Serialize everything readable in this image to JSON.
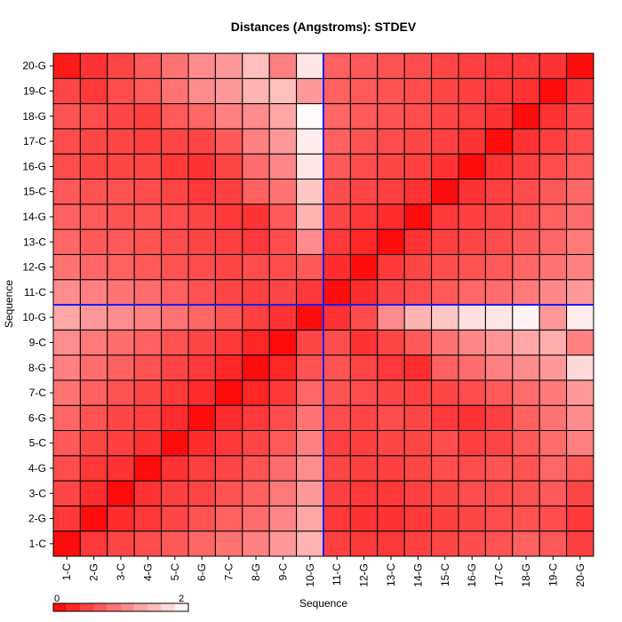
{
  "chart_data": {
    "type": "heatmap",
    "title": "Distances (Angstroms):  STDEV",
    "xlabel": "Sequence",
    "ylabel": "Sequence",
    "labels": [
      "1-C",
      "2-G",
      "3-C",
      "4-G",
      "5-C",
      "6-G",
      "7-C",
      "8-G",
      "9-C",
      "10-G",
      "11-C",
      "12-G",
      "13-C",
      "14-G",
      "15-C",
      "16-G",
      "17-C",
      "18-G",
      "19-C",
      "20-G"
    ],
    "highlight_index": 10,
    "highlight_color": "#1a1aff",
    "colorscale": {
      "min": 0,
      "max": 2,
      "low_color": "#ff0000",
      "high_color": "#ffffff"
    },
    "legend": {
      "min_label": "0",
      "max_label": "2"
    },
    "grid": true,
    "values": [
      [
        0.1,
        0.45,
        0.55,
        0.6,
        0.7,
        0.8,
        0.9,
        1.0,
        1.2,
        1.4,
        0.5,
        0.45,
        0.45,
        0.5,
        0.55,
        0.6,
        0.65,
        0.75,
        0.7,
        0.5
      ],
      [
        0.45,
        0.1,
        0.35,
        0.45,
        0.55,
        0.65,
        0.75,
        0.85,
        1.05,
        1.3,
        0.45,
        0.4,
        0.4,
        0.45,
        0.5,
        0.55,
        0.6,
        0.65,
        0.6,
        0.45
      ],
      [
        0.55,
        0.35,
        0.1,
        0.4,
        0.5,
        0.55,
        0.65,
        0.75,
        0.95,
        1.2,
        0.5,
        0.45,
        0.45,
        0.5,
        0.55,
        0.6,
        0.6,
        0.65,
        0.7,
        0.55
      ],
      [
        0.6,
        0.45,
        0.4,
        0.1,
        0.4,
        0.5,
        0.55,
        0.65,
        0.85,
        1.1,
        0.55,
        0.5,
        0.5,
        0.55,
        0.6,
        0.6,
        0.65,
        0.65,
        0.8,
        0.7
      ],
      [
        0.7,
        0.55,
        0.5,
        0.4,
        0.1,
        0.35,
        0.45,
        0.55,
        0.7,
        1.0,
        0.5,
        0.5,
        0.55,
        0.55,
        0.6,
        0.5,
        0.55,
        0.7,
        0.85,
        1.0
      ],
      [
        0.8,
        0.65,
        0.55,
        0.5,
        0.35,
        0.1,
        0.35,
        0.45,
        0.6,
        0.9,
        0.6,
        0.55,
        0.6,
        0.55,
        0.45,
        0.4,
        0.5,
        0.75,
        0.9,
        1.1
      ],
      [
        0.9,
        0.75,
        0.65,
        0.55,
        0.45,
        0.35,
        0.1,
        0.3,
        0.45,
        0.8,
        0.65,
        0.6,
        0.55,
        0.5,
        0.55,
        0.6,
        0.7,
        0.85,
        0.95,
        1.2
      ],
      [
        1.0,
        0.85,
        0.75,
        0.65,
        0.55,
        0.45,
        0.3,
        0.1,
        0.3,
        0.65,
        0.65,
        0.55,
        0.45,
        0.35,
        0.75,
        0.85,
        1.0,
        1.1,
        1.2,
        1.7
      ],
      [
        1.1,
        0.95,
        0.85,
        0.75,
        0.65,
        0.55,
        0.45,
        0.3,
        0.1,
        0.55,
        0.6,
        0.4,
        0.55,
        0.7,
        0.9,
        1.05,
        1.15,
        1.3,
        1.35,
        1.0
      ],
      [
        1.3,
        1.2,
        1.1,
        1.0,
        0.9,
        0.8,
        0.65,
        0.5,
        0.4,
        0.1,
        0.4,
        0.6,
        1.1,
        1.4,
        1.55,
        1.75,
        1.8,
        1.9,
        1.2,
        1.85
      ],
      [
        1.1,
        1.0,
        0.9,
        0.85,
        0.75,
        0.65,
        0.55,
        0.5,
        0.55,
        0.45,
        0.1,
        0.35,
        0.55,
        0.6,
        0.7,
        0.8,
        0.85,
        0.95,
        1.05,
        1.2
      ],
      [
        0.9,
        0.8,
        0.75,
        0.7,
        0.65,
        0.6,
        0.55,
        0.6,
        0.6,
        0.7,
        0.35,
        0.1,
        0.45,
        0.55,
        0.6,
        0.65,
        0.7,
        0.8,
        0.9,
        1.0
      ],
      [
        0.8,
        0.7,
        0.7,
        0.65,
        0.6,
        0.55,
        0.5,
        0.45,
        0.6,
        1.1,
        0.45,
        0.3,
        0.1,
        0.4,
        0.5,
        0.55,
        0.6,
        0.7,
        0.8,
        0.95
      ],
      [
        0.75,
        0.7,
        0.65,
        0.65,
        0.6,
        0.55,
        0.45,
        0.4,
        0.7,
        1.4,
        0.55,
        0.45,
        0.35,
        0.1,
        0.45,
        0.5,
        0.55,
        0.65,
        0.75,
        0.85
      ],
      [
        0.7,
        0.65,
        0.65,
        0.6,
        0.55,
        0.45,
        0.5,
        0.75,
        0.9,
        1.55,
        0.6,
        0.55,
        0.5,
        0.4,
        0.1,
        0.4,
        0.5,
        0.6,
        0.7,
        0.8
      ],
      [
        0.6,
        0.55,
        0.55,
        0.55,
        0.45,
        0.4,
        0.55,
        0.85,
        1.05,
        1.8,
        0.7,
        0.6,
        0.55,
        0.5,
        0.4,
        0.1,
        0.4,
        0.5,
        0.6,
        0.7
      ],
      [
        0.6,
        0.55,
        0.55,
        0.5,
        0.55,
        0.55,
        0.7,
        1.0,
        1.2,
        1.85,
        0.75,
        0.65,
        0.6,
        0.55,
        0.5,
        0.4,
        0.1,
        0.4,
        0.5,
        0.6
      ],
      [
        0.65,
        0.6,
        0.55,
        0.5,
        0.7,
        0.8,
        1.0,
        1.1,
        1.3,
        1.95,
        0.8,
        0.7,
        0.65,
        0.6,
        0.55,
        0.5,
        0.4,
        0.1,
        0.4,
        0.55
      ],
      [
        0.55,
        0.45,
        0.6,
        0.7,
        0.9,
        1.1,
        1.2,
        1.4,
        1.5,
        1.2,
        0.75,
        0.7,
        0.65,
        0.6,
        0.55,
        0.5,
        0.45,
        0.4,
        0.1,
        0.4
      ],
      [
        0.2,
        0.4,
        0.55,
        0.7,
        0.9,
        1.1,
        1.2,
        1.5,
        1.0,
        1.8,
        0.75,
        0.7,
        0.65,
        0.6,
        0.55,
        0.5,
        0.45,
        0.45,
        0.4,
        0.1
      ]
    ]
  }
}
